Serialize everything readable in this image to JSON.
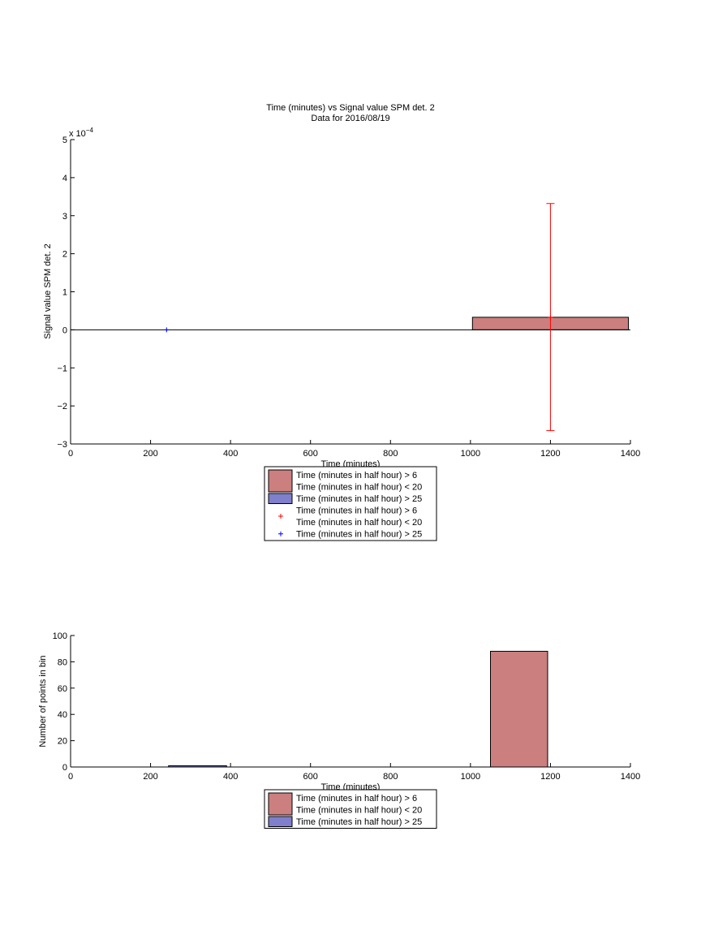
{
  "chart_data": [
    {
      "type": "bar",
      "title": "Time (minutes) vs Signal value SPM det. 2",
      "subtitle": "Data for 2016/08/19",
      "xlabel": "Time (minutes)",
      "ylabel": "Signal value SPM det. 2",
      "exponent_label": "x 10",
      "exponent_power": "−4",
      "xlim": [
        0,
        1400
      ],
      "ylim": [
        -3,
        5
      ],
      "y_scale": 0.0001,
      "xticks": [
        0,
        200,
        400,
        600,
        800,
        1000,
        1200,
        1400
      ],
      "yticks": [
        -3,
        -2,
        -1,
        0,
        1,
        2,
        3,
        4,
        5
      ],
      "grid": false,
      "legend_position": "below",
      "bars": [
        {
          "series": 0,
          "x_start": 1005,
          "x_end": 1395,
          "value": 0.33
        },
        {
          "series": 1,
          "x_start": 240,
          "x_end": 240,
          "value": 0.0
        }
      ],
      "errorbars": [
        {
          "series": 0,
          "x": 1200,
          "center": 0.33,
          "low": -2.65,
          "high": 3.32
        }
      ],
      "points": [
        {
          "series": 0,
          "x": 1200,
          "y": 0.33
        },
        {
          "series": 1,
          "x": 240,
          "y": 0.0
        }
      ],
      "legend": [
        {
          "kind": "patch",
          "color": "#cc7f7f",
          "lines": [
            "Time (minutes in half hour) > 6",
            "Time (minutes in half hour) < 20"
          ]
        },
        {
          "kind": "patch",
          "color": "#7f7fcc",
          "lines": [
            "Time (minutes in half hour) > 25"
          ]
        },
        {
          "kind": "marker",
          "color": "#ff0000",
          "lines": [
            "Time (minutes in half hour) > 6",
            "Time (minutes in half hour) < 20"
          ]
        },
        {
          "kind": "marker",
          "color": "#0000ff",
          "lines": [
            "Time (minutes in half hour) > 25"
          ]
        }
      ]
    },
    {
      "type": "bar",
      "title": "",
      "xlabel": "Time (minutes)",
      "ylabel": "Number of points in bin",
      "xlim": [
        0,
        1400
      ],
      "ylim": [
        0,
        100
      ],
      "xticks": [
        0,
        200,
        400,
        600,
        800,
        1000,
        1200,
        1400
      ],
      "yticks": [
        0,
        20,
        40,
        60,
        80,
        100
      ],
      "grid": false,
      "legend_position": "below",
      "bars": [
        {
          "series": 1,
          "x_start": 245,
          "x_end": 390,
          "value": 1
        },
        {
          "series": 0,
          "x_start": 1050,
          "x_end": 1193,
          "value": 88
        }
      ],
      "legend": [
        {
          "kind": "patch",
          "color": "#cc7f7f",
          "lines": [
            "Time (minutes in half hour) > 6",
            "Time (minutes in half hour) < 20"
          ]
        },
        {
          "kind": "patch",
          "color": "#7f7fcc",
          "lines": [
            "Time (minutes in half hour) > 25"
          ]
        }
      ]
    }
  ]
}
